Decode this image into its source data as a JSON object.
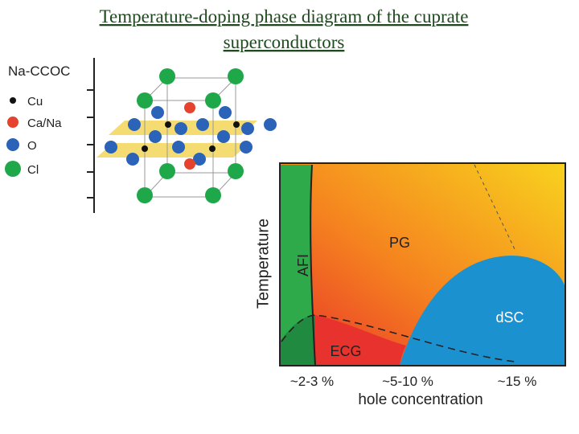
{
  "title": "Temperature-doping phase diagram of the cuprate superconductors",
  "crystal": {
    "name": "Na-CCOC",
    "legend": [
      "Cu",
      "Ca/Na",
      "O",
      "Cl"
    ]
  },
  "diagram": {
    "y_label": "Temperature",
    "x_label": "hole concentration",
    "x_ticks": [
      "~2-3 %",
      "~5-10 %",
      "~15 %"
    ],
    "regions": [
      "AFI",
      "PG",
      "dSC",
      "ECG"
    ]
  }
}
